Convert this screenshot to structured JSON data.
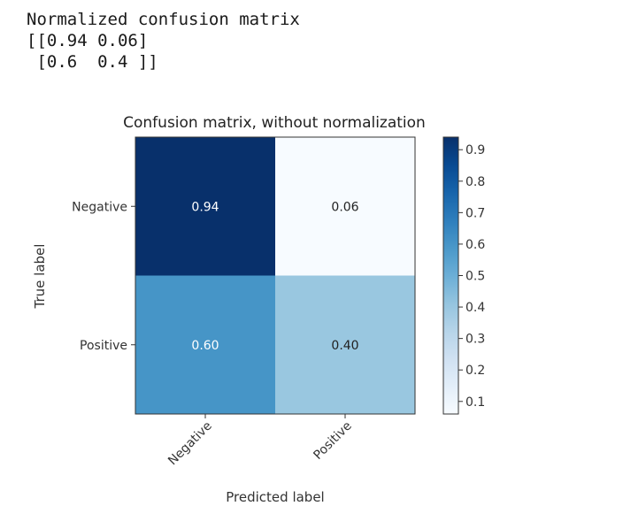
{
  "console_output": {
    "lines": [
      "Normalized confusion matrix",
      "[[0.94 0.06]",
      " [0.6  0.4 ]]"
    ]
  },
  "chart_data": {
    "type": "heatmap",
    "title": "Confusion matrix, without normalization",
    "xlabel": "Predicted label",
    "ylabel": "True label",
    "x_categories": [
      "Negative",
      "Positive"
    ],
    "y_categories": [
      "Negative",
      "Positive"
    ],
    "values": [
      [
        0.94,
        0.06
      ],
      [
        0.6,
        0.4
      ]
    ],
    "cell_labels": [
      [
        "0.94",
        "0.06"
      ],
      [
        "0.60",
        "0.40"
      ]
    ],
    "colormap": "Blues",
    "colorbar": {
      "range": [
        0.06,
        0.94
      ],
      "ticks": [
        0.1,
        0.2,
        0.3,
        0.4,
        0.5,
        0.6,
        0.7,
        0.8,
        0.9
      ],
      "tick_labels": [
        "0.1",
        "0.2",
        "0.3",
        "0.4",
        "0.5",
        "0.6",
        "0.7",
        "0.8",
        "0.9"
      ]
    },
    "colors": {
      "text_on_dark": "#ffffff",
      "text_on_light": "#222222",
      "axis": "#333333"
    }
  }
}
